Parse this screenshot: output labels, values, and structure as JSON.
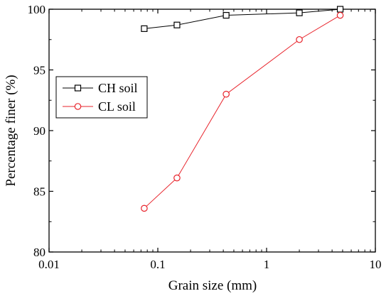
{
  "chart_data": {
    "type": "line",
    "xscale": "log",
    "xlabel": "Grain size (mm)",
    "ylabel": "Percentage finer (%)",
    "xlim": [
      0.01,
      10
    ],
    "ylim": [
      80,
      100
    ],
    "x_ticks": [
      {
        "value": 0.01,
        "label": "0.01"
      },
      {
        "value": 0.1,
        "label": "0.1"
      },
      {
        "value": 1,
        "label": "1"
      },
      {
        "value": 10,
        "label": "10"
      }
    ],
    "y_ticks": [
      {
        "value": 80,
        "label": "80"
      },
      {
        "value": 85,
        "label": "85"
      },
      {
        "value": 90,
        "label": "90"
      },
      {
        "value": 95,
        "label": "95"
      },
      {
        "value": 100,
        "label": "100"
      }
    ],
    "grid": false,
    "legend_position": "upper-left",
    "series": [
      {
        "name": "CH soil",
        "color": "#000000",
        "marker": "square",
        "x": [
          0.075,
          0.15,
          0.425,
          2.0,
          4.75
        ],
        "y": [
          98.4,
          98.7,
          99.5,
          99.7,
          100.0
        ]
      },
      {
        "name": "CL soil",
        "color": "#e8232b",
        "marker": "circle",
        "x": [
          0.075,
          0.15,
          0.425,
          2.0,
          4.75
        ],
        "y": [
          83.6,
          86.1,
          93.0,
          97.5,
          99.5
        ]
      }
    ]
  }
}
